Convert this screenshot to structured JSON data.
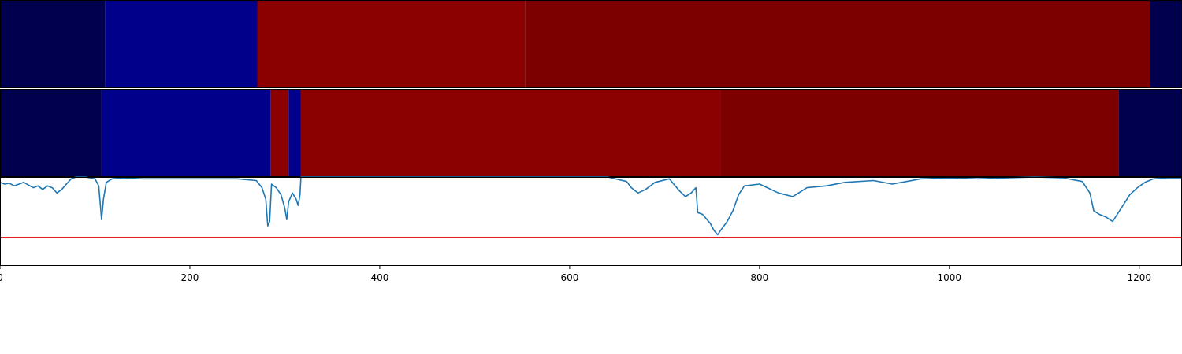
{
  "chart_data": {
    "type": "heatmap",
    "x_range": [
      0,
      1245
    ],
    "x_ticks": [
      {
        "value": 0,
        "label": "0"
      },
      {
        "value": 200,
        "label": "200"
      },
      {
        "value": 400,
        "label": "400"
      },
      {
        "value": 600,
        "label": "600"
      },
      {
        "value": 800,
        "label": "800"
      },
      {
        "value": 1000,
        "label": "1000"
      },
      {
        "value": 1200,
        "label": "1200"
      }
    ],
    "segment_rows": [
      {
        "segments": [
          {
            "start": 0,
            "end": 111,
            "color": "#00004f"
          },
          {
            "start": 111,
            "end": 271,
            "color": "#00008b"
          },
          {
            "start": 271,
            "end": 553,
            "color": "#8b0000"
          },
          {
            "start": 553,
            "end": 1211,
            "color": "#7c0000"
          },
          {
            "start": 1211,
            "end": 1245,
            "color": "#00004f"
          }
        ]
      },
      {
        "segments": [
          {
            "start": 0,
            "end": 107,
            "color": "#00004f"
          },
          {
            "start": 107,
            "end": 285,
            "color": "#00008b"
          },
          {
            "start": 285,
            "end": 304,
            "color": "#8b0000"
          },
          {
            "start": 304,
            "end": 317,
            "color": "#00008b"
          },
          {
            "start": 317,
            "end": 759,
            "color": "#8b0000"
          },
          {
            "start": 759,
            "end": 1178,
            "color": "#7c0000"
          },
          {
            "start": 1178,
            "end": 1245,
            "color": "#00004f"
          }
        ]
      }
    ],
    "line_panel": {
      "line_color": "#1f77b4",
      "threshold_color": "#e41a1c",
      "y_range": [
        -1.0,
        0.0
      ],
      "threshold": -0.68,
      "series": [
        [
          0,
          -0.06
        ],
        [
          5,
          -0.08
        ],
        [
          10,
          -0.07
        ],
        [
          15,
          -0.1
        ],
        [
          20,
          -0.08
        ],
        [
          25,
          -0.06
        ],
        [
          30,
          -0.09
        ],
        [
          35,
          -0.12
        ],
        [
          40,
          -0.1
        ],
        [
          45,
          -0.14
        ],
        [
          50,
          -0.1
        ],
        [
          55,
          -0.12
        ],
        [
          60,
          -0.18
        ],
        [
          65,
          -0.14
        ],
        [
          70,
          -0.08
        ],
        [
          75,
          -0.02
        ],
        [
          80,
          0.0
        ],
        [
          90,
          0.0
        ],
        [
          100,
          -0.02
        ],
        [
          104,
          -0.1
        ],
        [
          106,
          -0.35
        ],
        [
          107,
          -0.48
        ],
        [
          109,
          -0.25
        ],
        [
          112,
          -0.06
        ],
        [
          118,
          -0.02
        ],
        [
          130,
          -0.01
        ],
        [
          150,
          -0.02
        ],
        [
          200,
          -0.02
        ],
        [
          250,
          -0.02
        ],
        [
          270,
          -0.04
        ],
        [
          276,
          -0.12
        ],
        [
          280,
          -0.25
        ],
        [
          282,
          -0.55
        ],
        [
          284,
          -0.5
        ],
        [
          286,
          -0.08
        ],
        [
          291,
          -0.12
        ],
        [
          296,
          -0.2
        ],
        [
          300,
          -0.35
        ],
        [
          302,
          -0.48
        ],
        [
          304,
          -0.28
        ],
        [
          308,
          -0.18
        ],
        [
          312,
          -0.25
        ],
        [
          314,
          -0.32
        ],
        [
          316,
          -0.2
        ],
        [
          317,
          0.0
        ],
        [
          320,
          0.0
        ],
        [
          600,
          0.0
        ],
        [
          640,
          0.0
        ],
        [
          660,
          -0.05
        ],
        [
          665,
          -0.12
        ],
        [
          672,
          -0.18
        ],
        [
          680,
          -0.14
        ],
        [
          690,
          -0.06
        ],
        [
          705,
          -0.02
        ],
        [
          716,
          -0.16
        ],
        [
          722,
          -0.22
        ],
        [
          728,
          -0.18
        ],
        [
          733,
          -0.12
        ],
        [
          735,
          -0.4
        ],
        [
          740,
          -0.42
        ],
        [
          748,
          -0.52
        ],
        [
          752,
          -0.6
        ],
        [
          756,
          -0.65
        ],
        [
          759,
          -0.6
        ],
        [
          766,
          -0.5
        ],
        [
          772,
          -0.38
        ],
        [
          778,
          -0.2
        ],
        [
          784,
          -0.1
        ],
        [
          800,
          -0.08
        ],
        [
          820,
          -0.18
        ],
        [
          835,
          -0.22
        ],
        [
          850,
          -0.12
        ],
        [
          870,
          -0.1
        ],
        [
          890,
          -0.06
        ],
        [
          920,
          -0.04
        ],
        [
          940,
          -0.08
        ],
        [
          970,
          -0.02
        ],
        [
          1000,
          -0.01
        ],
        [
          1030,
          -0.02
        ],
        [
          1060,
          -0.01
        ],
        [
          1090,
          0.0
        ],
        [
          1120,
          -0.01
        ],
        [
          1140,
          -0.05
        ],
        [
          1148,
          -0.18
        ],
        [
          1152,
          -0.38
        ],
        [
          1158,
          -0.42
        ],
        [
          1165,
          -0.45
        ],
        [
          1172,
          -0.5
        ],
        [
          1178,
          -0.4
        ],
        [
          1184,
          -0.3
        ],
        [
          1190,
          -0.2
        ],
        [
          1198,
          -0.12
        ],
        [
          1206,
          -0.06
        ],
        [
          1215,
          -0.02
        ],
        [
          1230,
          -0.01
        ],
        [
          1245,
          -0.01
        ]
      ]
    }
  }
}
